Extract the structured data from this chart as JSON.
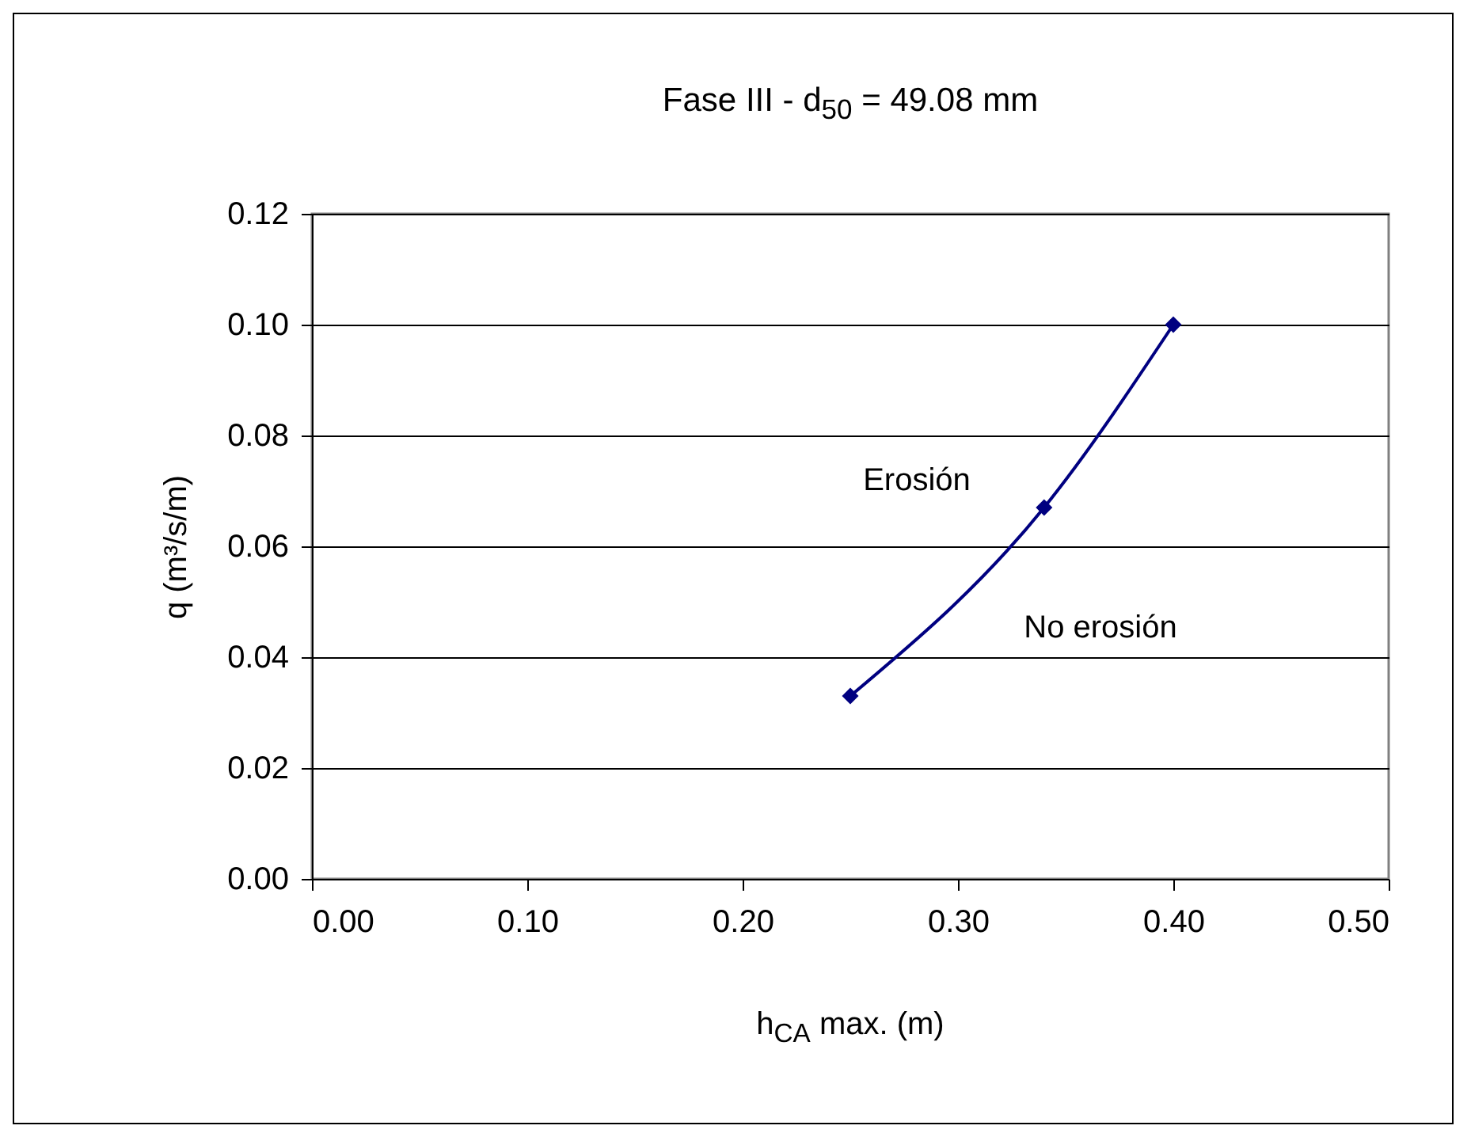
{
  "chart_data": {
    "type": "line",
    "title": "Fase III - d$_{50}$ = 49.08 mm",
    "xlabel": "h$_{CA}$  max. (m)",
    "ylabel": "q (m³/s/m)",
    "x": [
      0.25,
      0.34,
      0.4
    ],
    "series": [
      {
        "color": "#000080",
        "values": [
          0.033,
          0.067,
          0.1
        ]
      }
    ],
    "marker": "diamond",
    "grid": "y",
    "xlim": [
      0,
      0.5
    ],
    "ylim": [
      0,
      0.12
    ],
    "xticks": [
      {
        "value": 0,
        "label": "0.00"
      },
      {
        "value": 0.1,
        "label": "0.10"
      },
      {
        "value": 0.2,
        "label": "0.20"
      },
      {
        "value": 0.3,
        "label": "0.30"
      },
      {
        "value": 0.4,
        "label": "0.40"
      },
      {
        "value": 0.5,
        "label": "0.50"
      }
    ],
    "yticks": [
      {
        "value": 0,
        "label": "0.00"
      },
      {
        "value": 0.02,
        "label": "0.02"
      },
      {
        "value": 0.04,
        "label": "0.04"
      },
      {
        "value": 0.06,
        "label": "0.06"
      },
      {
        "value": 0.08,
        "label": "0.08"
      },
      {
        "value": 0.1,
        "label": "0.10"
      },
      {
        "value": 0.12,
        "label": "0.12"
      }
    ],
    "annotations": [
      "Erosión",
      "No erosión"
    ]
  }
}
